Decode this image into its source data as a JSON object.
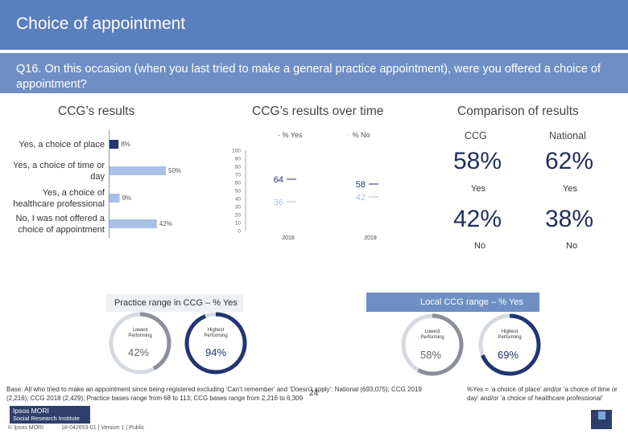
{
  "header": {
    "title": "Choice of appointment"
  },
  "question": "Q16. On this occasion (when you last tried to make a general practice appointment), were you offered a choice of appointment?",
  "sections": {
    "ccg_results": "CCG’s results",
    "over_time": "CCG’s results over time",
    "comparison": "Comparison of results"
  },
  "colors": {
    "header": "#5a7fbd",
    "question_bar": "#6f8fc4",
    "navy": "#1f3670",
    "light_blue": "#a9c0e6",
    "grey": "#c9cdd4"
  },
  "chart_data": [
    {
      "type": "bar",
      "orientation": "horizontal",
      "categories": [
        "Yes, a choice of place",
        "Yes, a choice of time or day",
        "Yes, a choice of healthcare professional",
        "No, I was not offered a choice of appointment"
      ],
      "values": [
        8,
        50,
        9,
        42
      ],
      "value_labels": [
        "8%",
        "50%",
        "9%",
        "42%"
      ],
      "xlim": [
        0,
        100
      ]
    },
    {
      "type": "line",
      "categories": [
        "2018",
        "2019"
      ],
      "series": [
        {
          "name": "% Yes",
          "values": [
            64,
            58
          ],
          "labels": [
            "64",
            "58"
          ],
          "color": "#1f3670"
        },
        {
          "name": "% No",
          "values": [
            36,
            42
          ],
          "labels": [
            "36",
            "42"
          ],
          "color": "#a9c0e6"
        }
      ],
      "yticks": [
        "100",
        "90",
        "80",
        "70",
        "60",
        "50",
        "40",
        "30",
        "20",
        "10",
        "0"
      ],
      "ylim": [
        0,
        100
      ]
    },
    {
      "type": "table",
      "columns": [
        "CCG",
        "National"
      ],
      "rows": [
        {
          "label": "Yes",
          "values": [
            "58%",
            "62%"
          ]
        },
        {
          "label": "No",
          "values": [
            "42%",
            "38%"
          ]
        }
      ]
    },
    {
      "type": "pie",
      "title": "Practice range in CCG – % Yes",
      "series": [
        {
          "name": "Lowest performing",
          "value": 42,
          "label": "42%"
        },
        {
          "name": "Highest performing",
          "value": 94,
          "label": "94%"
        }
      ]
    },
    {
      "type": "pie",
      "title": "Local CCG range – % Yes",
      "series": [
        {
          "name": "Lowest performing",
          "value": 58,
          "label": "58%"
        },
        {
          "name": "Highest performing",
          "value": 69,
          "label": "69%"
        }
      ]
    }
  ],
  "range_labels": {
    "lowest": "Lowest Performing",
    "highest": "Highest Performing"
  },
  "footnotes": {
    "base": "Base: All who tried to make an appointment since being registered excluding ‘Can’t remember’ and ‘Doesn’t apply’: National (693,075); CCG 2019 (2,216); CCG 2018 (2,429); Practice bases range from 68 to 113; CCG bases range from 2,216 to 6,309",
    "definition": "%Yes = ‘a choice of place’ and/or ‘a choice of time or day’ and/or ‘a choice of healthcare professional’",
    "page_number": "24",
    "copyright": "© Ipsos MORI",
    "version": "18-042653-01 | Version 1 | Public",
    "logo_line1": "Ipsos MORI",
    "logo_line2": "Social Research Institute"
  }
}
